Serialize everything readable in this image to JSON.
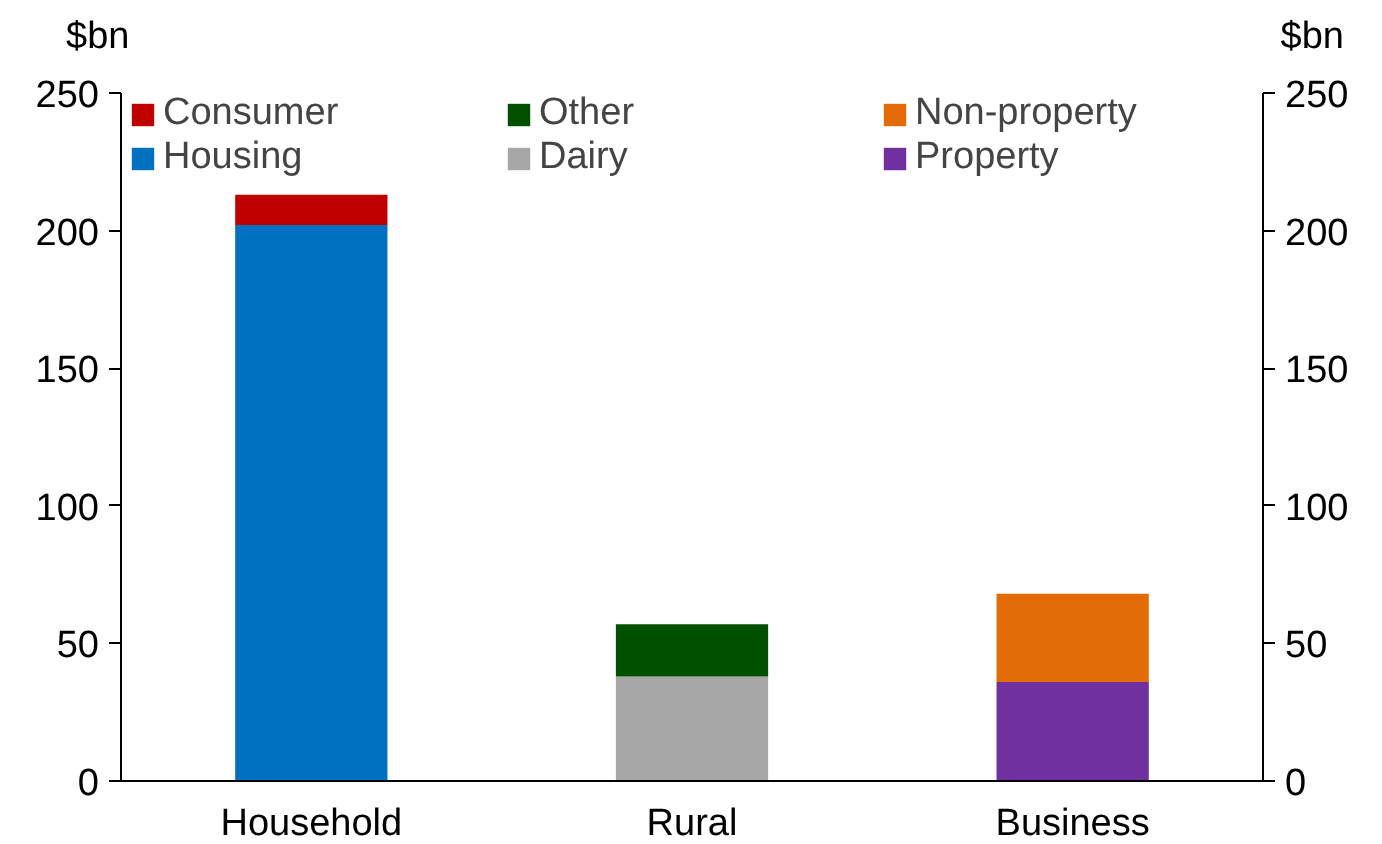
{
  "chart_data": {
    "type": "bar",
    "stacked": true,
    "ylabel": "$bn",
    "y2label": "$bn",
    "categories": [
      "Household",
      "Rural",
      "Business"
    ],
    "series": [
      {
        "name": "Housing",
        "color": "#0070c0",
        "values": [
          202,
          null,
          null
        ]
      },
      {
        "name": "Dairy",
        "color": "#a6a6a6",
        "values": [
          null,
          38,
          null
        ]
      },
      {
        "name": "Property",
        "color": "#7030a0",
        "values": [
          null,
          null,
          36
        ]
      },
      {
        "name": "Consumer",
        "color": "#c00000",
        "values": [
          11,
          null,
          null
        ]
      },
      {
        "name": "Other",
        "color": "#005000",
        "values": [
          null,
          19,
          null
        ]
      },
      {
        "name": "Non-property",
        "color": "#e36c09",
        "values": [
          null,
          null,
          32
        ]
      }
    ],
    "ylim": [
      0,
      250
    ],
    "yticks": [
      0,
      50,
      100,
      150,
      200,
      250
    ],
    "y2lim": [
      0,
      250
    ],
    "y2ticks": [
      0,
      50,
      100,
      150,
      200,
      250
    ],
    "grid": false,
    "legend": "top"
  }
}
